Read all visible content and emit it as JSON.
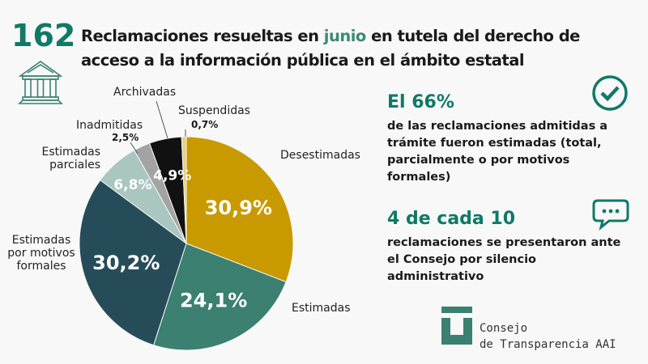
{
  "header": {
    "count": "162",
    "title_pre": "Reclamaciones resueltas en ",
    "title_highlight": "junio",
    "title_post": " en tutela del derecho de acceso a la información pública en el ámbito estatal"
  },
  "stats": [
    {
      "headline": "El 66%",
      "text": "de las reclamaciones admitidas a trámite fueron estimadas (total, parcialmente o por motivos formales)",
      "icon": "check-circle-icon"
    },
    {
      "headline": "4 de cada 10",
      "text": "reclamaciones se presentaron ante el Consejo por silencio administrativo",
      "icon": "speech-bubble-icon"
    }
  ],
  "logo": {
    "line1": "Consejo",
    "line2": "de Transparencia AAI"
  },
  "chart_data": {
    "type": "pie",
    "start": "top",
    "direction": "clockwise",
    "categories": [
      "Desestimadas",
      "Estimadas",
      "Estimadas por motivos formales",
      "Estimadas parciales",
      "Inadmitidas",
      "Archivadas",
      "Suspendidas"
    ],
    "values": [
      30.9,
      24.1,
      30.2,
      6.8,
      2.5,
      4.9,
      0.7
    ],
    "labels": [
      "30,9%",
      "24,1%",
      "30,2%",
      "6,8%",
      "2,5%",
      "4,9%",
      "0,7%"
    ],
    "colors": [
      "#c99a00",
      "#3b8070",
      "#264c5a",
      "#a9c6c0",
      "#a3a3a3",
      "#111111",
      "#e6cf88"
    ]
  }
}
